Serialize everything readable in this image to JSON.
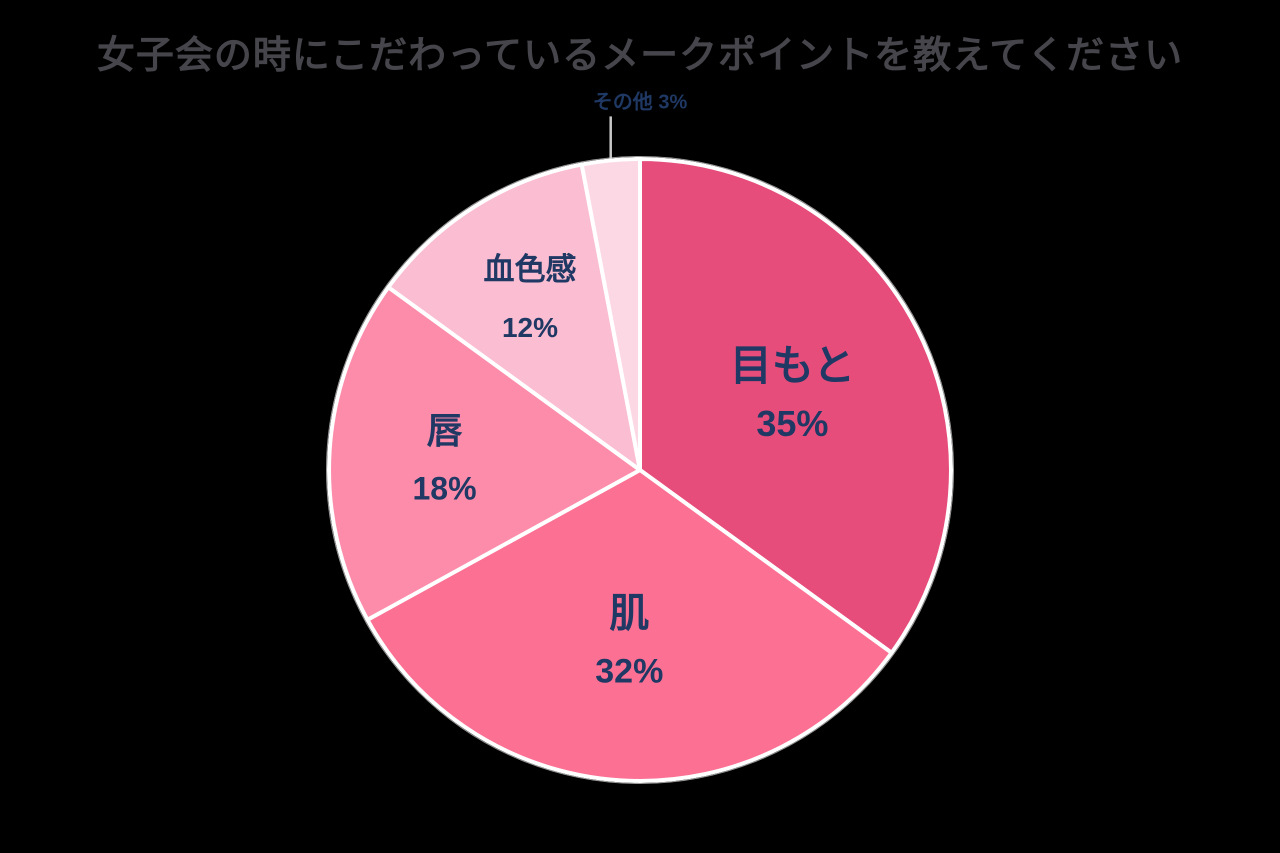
{
  "title": "女子会の時にこだわっているメークポイントを教えてください",
  "colors": {
    "background": "#000000",
    "title_color": "#45454b",
    "label_color": "#1f3864",
    "slice_border_color": "#ffffff",
    "leader_line_color": "#c8c8c8",
    "outer_ring_color": "#9a9a9a"
  },
  "chart_data": {
    "type": "pie",
    "title": "女子会の時にこだわっているメークポイントを教えてください",
    "unit": "%",
    "start_angle_deg": 0,
    "direction": "clockwise",
    "legend": "none",
    "label_color": "#1f3864",
    "slice_border_color": "#ffffff",
    "leader_line_color": "#c8c8c8",
    "slices": [
      {
        "key": "eyes",
        "label": "目もと",
        "value": 35,
        "display_value": "35%",
        "color": "#e64d7b",
        "label_r": 0.55,
        "name_size": 42,
        "pct_size": 36,
        "label_outside": false
      },
      {
        "key": "skin",
        "label": "肌",
        "value": 32,
        "display_value": "32%",
        "color": "#fc7093",
        "label_r": 0.55,
        "name_size": 40,
        "pct_size": 34,
        "label_outside": false
      },
      {
        "key": "lips",
        "label": "唇",
        "value": 18,
        "display_value": "18%",
        "color": "#fc8caa",
        "label_r": 0.63,
        "name_size": 36,
        "pct_size": 32,
        "label_outside": false
      },
      {
        "key": "complexion",
        "label": "血色感",
        "value": 12,
        "display_value": "12%",
        "color": "#fabdd1",
        "label_r": 0.66,
        "name_size": 31,
        "pct_size": 28,
        "label_outside": false
      },
      {
        "key": "other",
        "label": "その他",
        "value": 3,
        "display_value": "3%",
        "color": "#fcd8e4",
        "label_r": 1.0,
        "name_size": 20,
        "pct_size": 20,
        "label_outside": true
      }
    ]
  }
}
